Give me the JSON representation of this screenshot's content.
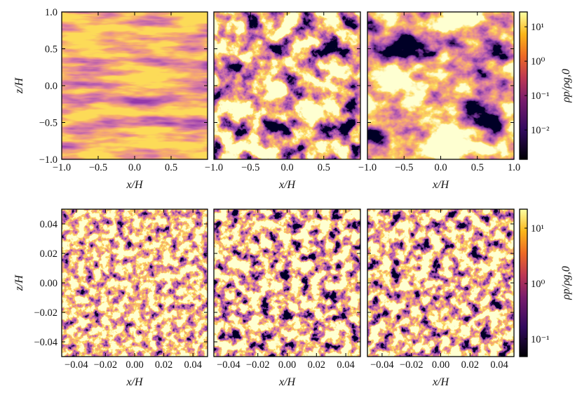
{
  "chart_data": [
    {
      "type": "heatmap",
      "colormap": "inferno",
      "xlabel": "x/H",
      "ylabel": "z/H",
      "colorbar_label": "ρp/ρg,0",
      "xlim": [
        -1,
        1
      ],
      "ylim": [
        -1,
        1
      ],
      "xticks": [
        {
          "value": -1,
          "label": "−1.0"
        },
        {
          "value": -0.5,
          "label": "−0.5"
        },
        {
          "value": 0,
          "label": "0.0"
        },
        {
          "value": 0.5,
          "label": "0.5"
        },
        {
          "value": 1,
          "label": "1.0"
        }
      ],
      "yticks": [
        {
          "value": -1,
          "label": "−1.0"
        },
        {
          "value": -0.5,
          "label": "−0.5"
        },
        {
          "value": 0,
          "label": "0.0"
        },
        {
          "value": 0.5,
          "label": "0.5"
        },
        {
          "value": 1,
          "label": "1.0"
        }
      ],
      "clim": [
        0.0014,
        27
      ],
      "colorbar_log_scale": true,
      "cticks": [
        {
          "value": 10,
          "label": "10¹"
        },
        {
          "value": 1,
          "label": "10⁰"
        },
        {
          "value": 0.1,
          "label": "10⁻¹"
        },
        {
          "value": 0.01,
          "label": "10⁻²"
        }
      ]
    },
    {
      "type": "heatmap",
      "colormap": "inferno",
      "xlabel": "x/H",
      "ylabel": "z/H",
      "colorbar_label": "ρp/ρg,0",
      "xlim": [
        -0.05,
        0.05
      ],
      "ylim": [
        -0.05,
        0.05
      ],
      "xticks": [
        {
          "value": -0.04,
          "label": "−0.04"
        },
        {
          "value": -0.02,
          "label": "−0.02"
        },
        {
          "value": 0,
          "label": "0.00"
        },
        {
          "value": 0.02,
          "label": "0.02"
        },
        {
          "value": 0.04,
          "label": "0.04"
        }
      ],
      "yticks": [
        {
          "value": -0.04,
          "label": "−0.04"
        },
        {
          "value": -0.02,
          "label": "−0.02"
        },
        {
          "value": 0,
          "label": "0.00"
        },
        {
          "value": 0.02,
          "label": "0.02"
        },
        {
          "value": 0.04,
          "label": "0.04"
        }
      ],
      "clim": [
        0.048,
        22
      ],
      "colorbar_log_scale": true,
      "cticks": [
        {
          "value": 10,
          "label": "10¹"
        },
        {
          "value": 1,
          "label": "10⁰"
        },
        {
          "value": 0.1,
          "label": "10⁻¹"
        }
      ]
    }
  ]
}
